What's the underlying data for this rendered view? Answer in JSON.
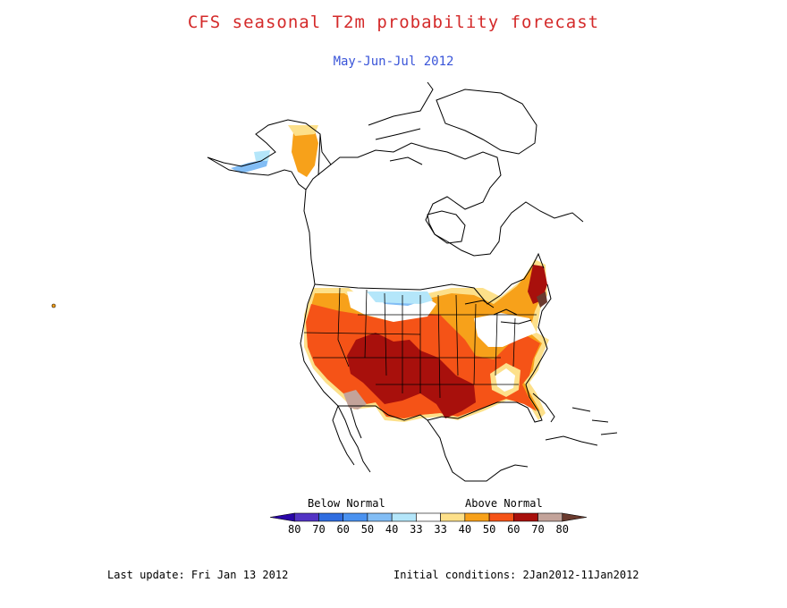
{
  "title": "CFS seasonal T2m probability forecast",
  "subtitle": "May-Jun-Jul 2012",
  "legend": {
    "below_label": "Below Normal",
    "above_label": "Above Normal",
    "ticks": [
      "80",
      "70",
      "60",
      "50",
      "40",
      "33",
      "33",
      "40",
      "50",
      "60",
      "70",
      "80"
    ],
    "colors": [
      "#2a06a8",
      "#5233c4",
      "#2f6de0",
      "#4a92f0",
      "#82bdf5",
      "#b4e6fa",
      "#ffffff",
      "#fde08a",
      "#f7a11a",
      "#f55317",
      "#a8100c",
      "#c3a39a",
      "#6a3a2e"
    ]
  },
  "footer": {
    "last_update": "Last update: Fri Jan 13 2012",
    "initial_conditions": "Initial conditions: 2Jan2012-11Jan2012"
  },
  "regions": [
    {
      "name": "conus-above-40",
      "color": "#fde08a"
    },
    {
      "name": "conus-above-50",
      "color": "#f7a11a"
    },
    {
      "name": "conus-above-60",
      "color": "#f55317"
    },
    {
      "name": "conus-above-70",
      "color": "#a8100c"
    },
    {
      "name": "alaska-above-50",
      "color": "#f7a11a"
    },
    {
      "name": "aleutian-below",
      "color": "#82bdf5"
    },
    {
      "name": "north-plains-below",
      "color": "#82bdf5"
    }
  ]
}
